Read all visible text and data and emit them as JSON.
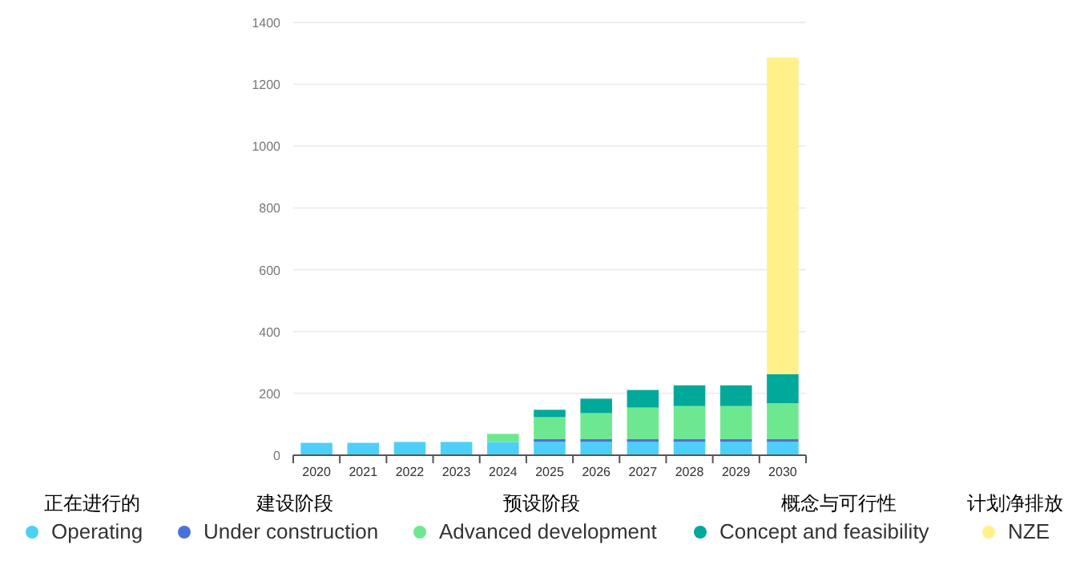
{
  "chart_data": {
    "type": "bar",
    "stacked": true,
    "categories": [
      "2020",
      "2021",
      "2022",
      "2023",
      "2024",
      "2025",
      "2026",
      "2027",
      "2028",
      "2029",
      "2030"
    ],
    "series": [
      {
        "name": "Operating",
        "color": "#4dd0f7",
        "values": [
          40,
          40,
          43,
          43,
          43,
          43,
          43,
          43,
          43,
          43,
          43
        ]
      },
      {
        "name": "Under construction",
        "color": "#4a72d6",
        "values": [
          null,
          null,
          null,
          null,
          null,
          9,
          9,
          9,
          9,
          9,
          9
        ]
      },
      {
        "name": "Advanced development",
        "color": "#6ee890",
        "values": [
          null,
          null,
          null,
          null,
          26,
          71,
          84,
          102,
          107,
          107,
          116
        ]
      },
      {
        "name": "Concept and feasibility",
        "color": "#00a99a",
        "values": [
          null,
          null,
          null,
          null,
          null,
          24,
          47,
          57,
          67,
          67,
          94
        ]
      },
      {
        "name": "NZE",
        "color": "#fff08a",
        "values": [
          null,
          null,
          null,
          null,
          null,
          null,
          null,
          null,
          null,
          null,
          1025
        ]
      }
    ],
    "annotations": [
      "正在进行的",
      "建设阶段",
      "预设阶段",
      "概念与可行性",
      "计划净排放"
    ],
    "ylim": [
      0,
      1400
    ],
    "yticks": [
      0,
      200,
      400,
      600,
      800,
      1000,
      1200,
      1400
    ],
    "grid": "y",
    "legend": "bottom"
  }
}
